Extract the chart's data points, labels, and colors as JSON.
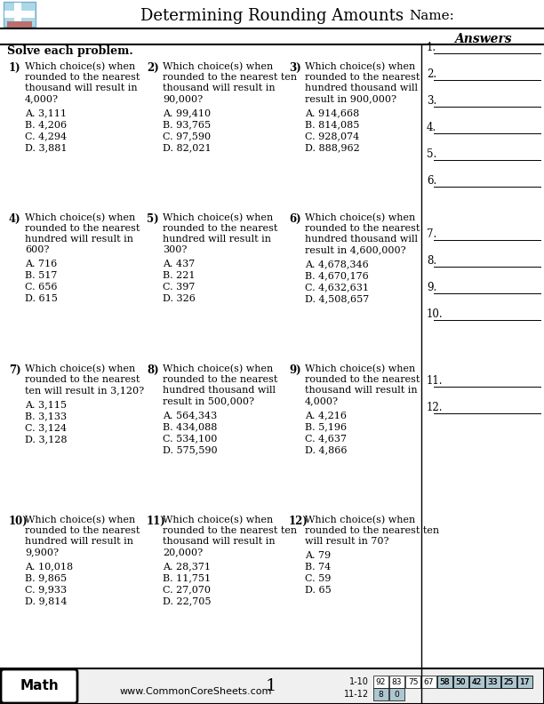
{
  "title": "Determining Rounding Amounts",
  "name_label": "Name:",
  "solve_label": "Solve each problem.",
  "answers_label": "Answers",
  "website": "www.CommonCoreSheets.com",
  "page_num": "1",
  "subject": "Math",
  "score_label_1": "1-10",
  "score_label_2": "11-12",
  "scores_row1": [
    "92",
    "83",
    "75",
    "67",
    "58",
    "50",
    "42",
    "33",
    "25",
    "17"
  ],
  "scores_row2": [
    "8",
    "0"
  ],
  "problems": [
    {
      "num": "1)",
      "question": "Which choice(s) when\nrounded to the nearest\nthousand will result in\n4,000?",
      "choices": [
        "A. 3,111",
        "B. 4,206",
        "C. 4,294",
        "D. 3,881"
      ]
    },
    {
      "num": "2)",
      "question": "Which choice(s) when\nrounded to the nearest ten\nthousand will result in\n90,000?",
      "choices": [
        "A. 99,410",
        "B. 93,765",
        "C. 97,590",
        "D. 82,021"
      ]
    },
    {
      "num": "3)",
      "question": "Which choice(s) when\nrounded to the nearest\nhundred thousand will\nresult in 900,000?",
      "choices": [
        "A. 914,668",
        "B. 814,085",
        "C. 928,074",
        "D. 888,962"
      ]
    },
    {
      "num": "4)",
      "question": "Which choice(s) when\nrounded to the nearest\nhundred will result in\n600?",
      "choices": [
        "A. 716",
        "B. 517",
        "C. 656",
        "D. 615"
      ]
    },
    {
      "num": "5)",
      "question": "Which choice(s) when\nrounded to the nearest\nhundred will result in\n300?",
      "choices": [
        "A. 437",
        "B. 221",
        "C. 397",
        "D. 326"
      ]
    },
    {
      "num": "6)",
      "question": "Which choice(s) when\nrounded to the nearest\nhundred thousand will\nresult in 4,600,000?",
      "choices": [
        "A. 4,678,346",
        "B. 4,670,176",
        "C. 4,632,631",
        "D. 4,508,657"
      ]
    },
    {
      "num": "7)",
      "question": "Which choice(s) when\nrounded to the nearest\nten will result in 3,120?",
      "choices": [
        "A. 3,115",
        "B. 3,133",
        "C. 3,124",
        "D. 3,128"
      ]
    },
    {
      "num": "8)",
      "question": "Which choice(s) when\nrounded to the nearest\nhundred thousand will\nresult in 500,000?",
      "choices": [
        "A. 564,343",
        "B. 434,088",
        "C. 534,100",
        "D. 575,590"
      ]
    },
    {
      "num": "9)",
      "question": "Which choice(s) when\nrounded to the nearest\nthousand will result in\n4,000?",
      "choices": [
        "A. 4,216",
        "B. 5,196",
        "C. 4,637",
        "D. 4,866"
      ]
    },
    {
      "num": "10)",
      "question": "Which choice(s) when\nrounded to the nearest\nhundred will result in\n9,900?",
      "choices": [
        "A. 10,018",
        "B. 9,865",
        "C. 9,933",
        "D. 9,814"
      ]
    },
    {
      "num": "11)",
      "question": "Which choice(s) when\nrounded to the nearest ten\nthousand will result in\n20,000?",
      "choices": [
        "A. 28,371",
        "B. 11,751",
        "C. 27,070",
        "D. 22,705"
      ]
    },
    {
      "num": "12)",
      "question": "Which choice(s) when\nrounded to the nearest ten\nwill result in 70?",
      "choices": [
        "A. 79",
        "B. 74",
        "C. 59",
        "D. 65"
      ]
    }
  ],
  "answer_lines": [
    "1.",
    "2.",
    "3.",
    "4.",
    "5.",
    "6.",
    "7.",
    "8.",
    "9.",
    "10.",
    "11.",
    "12."
  ],
  "bg_color": "#ffffff",
  "header_bg": "#ffffff",
  "answers_bg": "#ffffff",
  "border_color": "#000000",
  "blue_color": "#add8e6",
  "score_blue": "#aec6cf"
}
